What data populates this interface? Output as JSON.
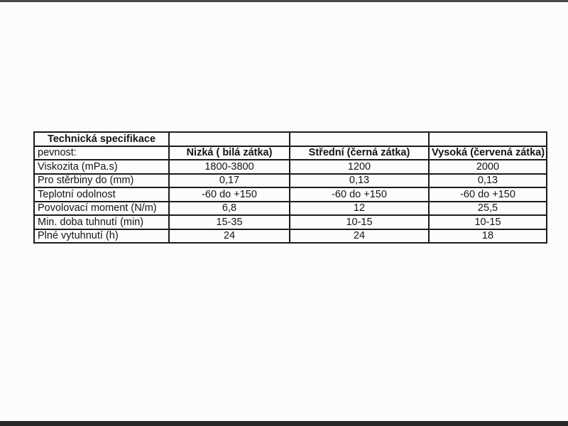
{
  "page": {
    "background_color": "#fcfcfc",
    "top_bar_color": "#474747",
    "bottom_bar_color": "#282828"
  },
  "table": {
    "border_color": "#1b1b1b",
    "text_color": "#141414",
    "title": "Technická specifikace",
    "subheader": {
      "label": "pevnost:",
      "columns": [
        "Nizká ( bilá zátka)",
        "Střední (černá zátka)",
        "Vysoká (červená zátka)"
      ]
    },
    "rows": [
      {
        "label": "Viskozita (mPa.s)",
        "values": [
          "1800-3800",
          "1200",
          "2000"
        ]
      },
      {
        "label": "Pro stěrbiny do (mm)",
        "values": [
          "0,17",
          "0,13",
          "0,13"
        ]
      },
      {
        "label": "Teplotní odolnost",
        "values": [
          "-60 do +150",
          "-60 do +150",
          "-60 do +150"
        ]
      },
      {
        "label": "Povolovací moment (N/m)",
        "values": [
          "6,8",
          "12",
          "25,5"
        ]
      },
      {
        "label": "Min. doba tuhnutí (min)",
        "values": [
          "15-35",
          "10-15",
          "10-15"
        ]
      },
      {
        "label": "Plné vytuhnutí  (h)",
        "values": [
          "24",
          "24",
          "18"
        ]
      }
    ]
  }
}
